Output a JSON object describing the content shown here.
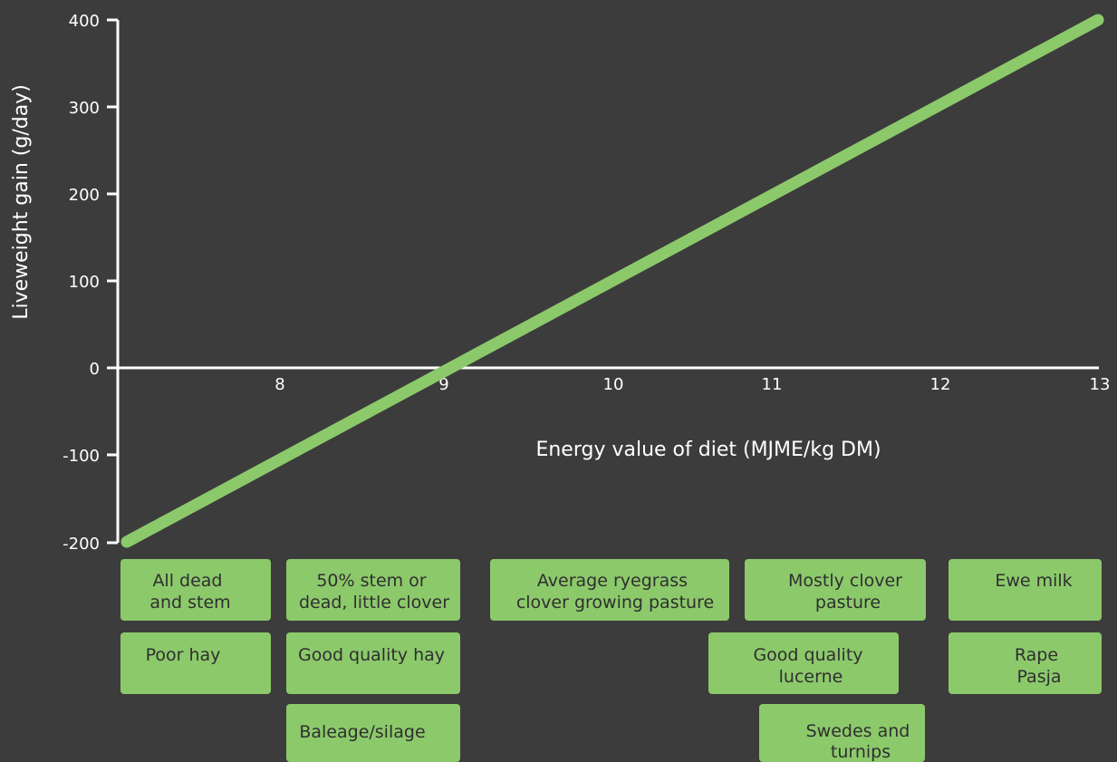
{
  "chart_data": {
    "type": "line",
    "title": "",
    "xlabel": "Energy value of diet (MJME/kg DM)",
    "ylabel": "Liveweight gain (g/day)",
    "xlim": [
      7,
      13
    ],
    "ylim": [
      -200,
      400
    ],
    "x_ticks": [
      "8",
      "9",
      "10",
      "11",
      "12",
      "13"
    ],
    "y_ticks": [
      "400",
      "300",
      "200",
      "100",
      "0",
      "-100",
      "-200"
    ],
    "grid": false,
    "series": [
      {
        "color": "#8cc96b",
        "points": [
          {
            "x": 7,
            "y": -200
          },
          {
            "x": 13,
            "y": 400
          }
        ]
      }
    ],
    "feed_boxes": [
      {
        "lines": [
          "All dead",
          "and stem"
        ]
      },
      {
        "lines": [
          "50% stem or",
          "dead, little clover"
        ]
      },
      {
        "lines": [
          "Average ryegrass",
          "clover growing pasture"
        ]
      },
      {
        "lines": [
          "Mostly clover",
          "pasture"
        ]
      },
      {
        "lines": [
          "Ewe milk"
        ]
      },
      {
        "lines": [
          "Poor hay"
        ]
      },
      {
        "lines": [
          "Good quality hay"
        ]
      },
      {
        "lines": [
          "Good quality",
          "lucerne"
        ]
      },
      {
        "lines": [
          "Rape",
          "Pasja"
        ]
      },
      {
        "lines": [
          "Baleage/silage"
        ]
      },
      {
        "lines": [
          "Swedes and",
          "turnips"
        ]
      }
    ]
  },
  "colors": {
    "background": "#3c3c3c",
    "axis": "#ffffff",
    "line": "#8cc96b",
    "box": "#8cc96b",
    "box_text": "#2f2f2f"
  }
}
